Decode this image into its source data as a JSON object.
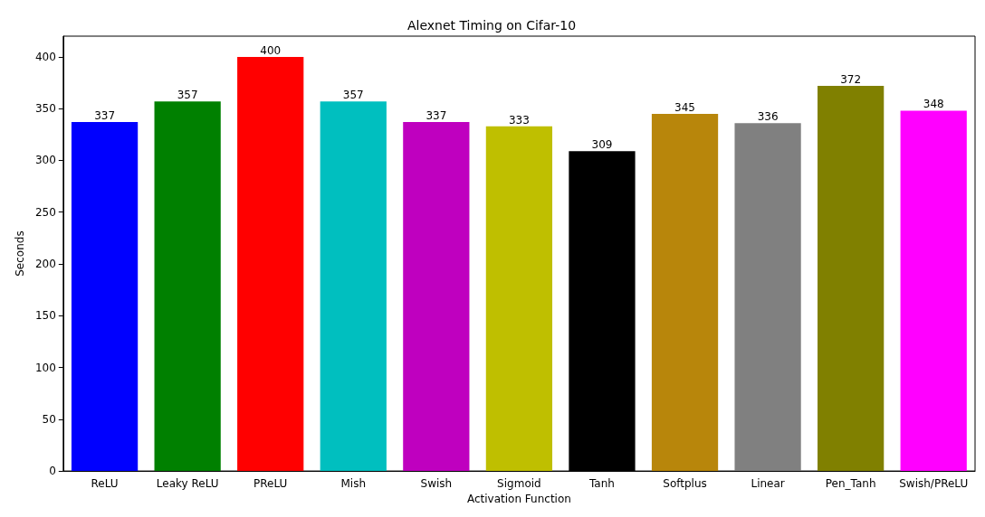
{
  "chart_data": {
    "type": "bar",
    "title": "Alexnet Timing on Cifar-10",
    "xlabel": "Activation Function",
    "ylabel": "Seconds",
    "categories": [
      "ReLU",
      "Leaky ReLU",
      "PReLU",
      "Mish",
      "Swish",
      "Sigmoid",
      "Tanh",
      "Softplus",
      "Linear",
      "Pen_Tanh",
      "Swish/PReLU"
    ],
    "values": [
      337,
      357,
      400,
      357,
      337,
      333,
      309,
      345,
      336,
      372,
      348
    ],
    "colors": [
      "#0000ff",
      "#008000",
      "#ff0000",
      "#00bfbf",
      "#bf00bf",
      "#bfbf00",
      "#000000",
      "#b8860b",
      "#808080",
      "#808000",
      "#ff00ff"
    ],
    "ylim": [
      0,
      420
    ],
    "yticks": [
      0,
      50,
      100,
      150,
      200,
      250,
      300,
      350,
      400
    ],
    "data_labels": true,
    "grid": false
  }
}
